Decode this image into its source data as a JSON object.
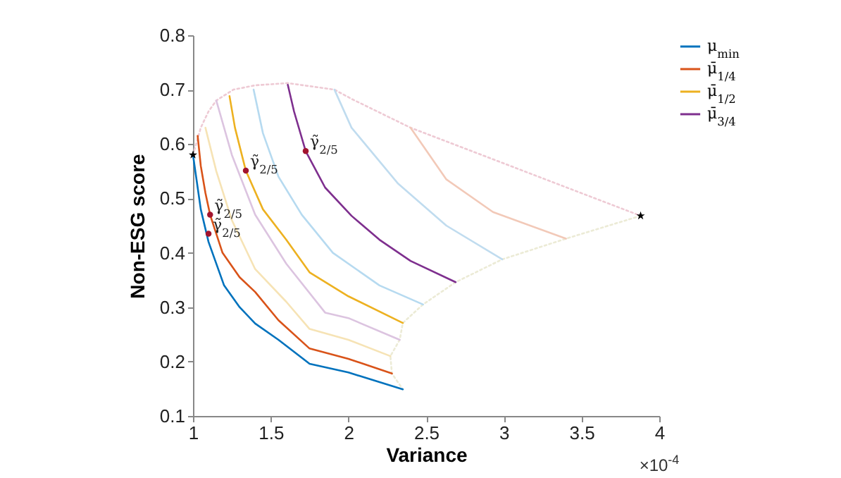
{
  "chart_data": {
    "type": "line",
    "xlabel": "Variance",
    "ylabel": "Non-ESG score",
    "xlim": [
      1,
      4
    ],
    "ylim": [
      0.1,
      0.8
    ],
    "xticks": [
      1,
      1.5,
      2,
      2.5,
      3,
      3.5,
      4
    ],
    "yticks": [
      0.1,
      0.2,
      0.3,
      0.4,
      0.5,
      0.6,
      0.7,
      0.8
    ],
    "legend": "top right",
    "marker": "none",
    "annotations": [
      "×10$^{-4}$",
      {
        "text": "γ̃$_{2/5}$",
        "x": 1.1,
        "y": 0.435
      },
      {
        "text": "γ̃$_{2/5}$",
        "x": 1.11,
        "y": 0.47
      },
      {
        "text": "γ̃$_{2/5}$",
        "x": 1.34,
        "y": 0.551
      },
      {
        "text": "γ̃$_{2/5}$",
        "x": 1.725,
        "y": 0.587
      }
    ],
    "series": [
      {
        "color": "#eecad4",
        "line_style": "dotted",
        "x": [
          1.0,
          1.05,
          1.1,
          1.15,
          1.26,
          1.4,
          1.61,
          1.91,
          2.02,
          2.4,
          3.88
        ],
        "values": [
          0.58,
          0.63,
          0.66,
          0.68,
          0.7,
          0.708,
          0.712,
          0.7,
          0.683,
          0.63,
          0.468
        ]
      },
      {
        "color": "#ecebd6",
        "line_style": "dotted",
        "x": [
          3.88,
          3.4,
          2.99,
          2.69,
          2.48,
          2.35,
          2.33,
          2.27,
          2.28,
          2.35
        ],
        "values": [
          0.468,
          0.426,
          0.388,
          0.346,
          0.305,
          0.271,
          0.24,
          0.21,
          0.178,
          0.149
        ]
      },
      {
        "color": "#f6e3b5",
        "x": [
          1.08,
          1.15,
          1.25,
          1.4,
          1.6,
          1.75,
          2.0,
          2.27
        ],
        "values": [
          0.63,
          0.55,
          0.46,
          0.37,
          0.31,
          0.26,
          0.24,
          0.21
        ]
      },
      {
        "color": "#dcc4e0",
        "x": [
          1.15,
          1.25,
          1.4,
          1.6,
          1.85,
          2.0,
          2.33
        ],
        "values": [
          0.68,
          0.58,
          0.47,
          0.38,
          0.29,
          0.28,
          0.24
        ]
      },
      {
        "color": "#b6daf0",
        "x": [
          1.39,
          1.45,
          1.55,
          1.7,
          1.9,
          2.2,
          2.48
        ],
        "values": [
          0.7,
          0.62,
          0.54,
          0.47,
          0.4,
          0.34,
          0.305
        ]
      },
      {
        "color": "#c0dcef",
        "x": [
          1.91,
          2.02,
          2.32,
          2.63,
          2.99
        ],
        "values": [
          0.7,
          0.63,
          0.527,
          0.45,
          0.388
        ]
      },
      {
        "color": "#f2c9b8",
        "x": [
          2.4,
          2.63,
          2.93,
          3.4
        ],
        "values": [
          0.63,
          0.535,
          0.475,
          0.426
        ]
      },
      {
        "name": "μ$_{min}$",
        "color": "#0072bd",
        "x": [
          1.0,
          1.02,
          1.05,
          1.1,
          1.2,
          1.3,
          1.4,
          1.55,
          1.75,
          2.0,
          2.35
        ],
        "values": [
          0.58,
          0.54,
          0.48,
          0.42,
          0.34,
          0.3,
          0.27,
          0.24,
          0.196,
          0.18,
          0.149
        ]
      },
      {
        "name": "μ̄$_{1/4}$",
        "color": "#d95319",
        "x": [
          1.03,
          1.05,
          1.08,
          1.11,
          1.19,
          1.3,
          1.4,
          1.55,
          1.75,
          2.0,
          2.28
        ],
        "values": [
          0.615,
          0.56,
          0.51,
          0.47,
          0.4,
          0.355,
          0.328,
          0.276,
          0.224,
          0.205,
          0.178
        ]
      },
      {
        "name": "μ̄$_{1/2}$",
        "color": "#edb120",
        "x": [
          1.235,
          1.27,
          1.34,
          1.45,
          1.6,
          1.75,
          2.0,
          2.35
        ],
        "values": [
          0.688,
          0.63,
          0.551,
          0.48,
          0.424,
          0.364,
          0.32,
          0.271
        ]
      },
      {
        "name": "μ̄$_{3/4}$",
        "color": "#7e2f8e",
        "x": [
          1.61,
          1.65,
          1.725,
          1.85,
          2.02,
          2.2,
          2.4,
          2.69
        ],
        "values": [
          0.709,
          0.66,
          0.587,
          0.52,
          0.468,
          0.424,
          0.385,
          0.346
        ]
      },
      {
        "type": "scatter",
        "marker": "circle",
        "color": "#a2142f",
        "x": [
          1.1,
          1.11,
          1.34,
          1.725
        ],
        "values": [
          0.435,
          0.47,
          0.551,
          0.587
        ]
      },
      {
        "type": "scatter",
        "marker": "star",
        "color": "#000000",
        "x": [
          1.0,
          3.88
        ],
        "values": [
          0.58,
          0.468
        ]
      }
    ]
  }
}
